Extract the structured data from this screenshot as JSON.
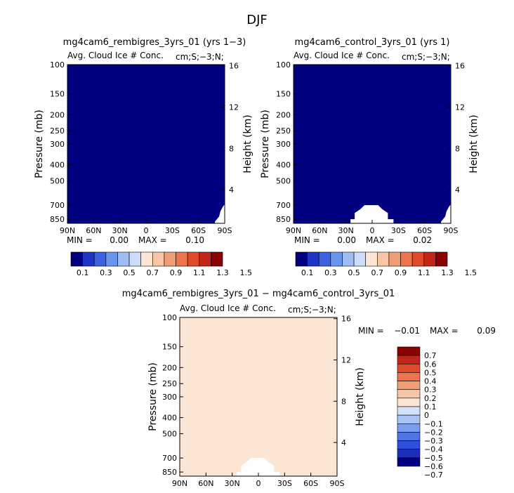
{
  "figure": {
    "title": "DJF"
  },
  "colors": {
    "field_levels": [
      "#000080",
      "#1f34c8",
      "#3b62e0",
      "#6a95ee",
      "#9fbdf3",
      "#cddcf7",
      "#fbe6d6",
      "#f7c6a7",
      "#f29e75",
      "#ed744e",
      "#e04b2e",
      "#c52518",
      "#8b0000"
    ],
    "diff_levels": [
      "#000080",
      "#1c2fb8",
      "#2f4fdc",
      "#4f74e6",
      "#7c9ced",
      "#a9c3f4",
      "#d2e2fa",
      "#fbe6d6",
      "#f7c6a7",
      "#f29e75",
      "#ed744e",
      "#e04b2e",
      "#c52518",
      "#8b0000"
    ],
    "line": "#000000"
  },
  "chart_data": [
    {
      "type": "heatmap",
      "panel": "a",
      "title": "mg4cam6_rembigres_3yrs_01 (yrs 1-3)",
      "subtitle": "Avg. Cloud Ice # Conc.",
      "corner_label": "cm;S;-3;N;",
      "ylabel": "Pressure (mb)",
      "ylabel_right": "Height (km)",
      "x_ticks": [
        "90N",
        "60N",
        "30N",
        "0",
        "30S",
        "60S",
        "90S"
      ],
      "y_ticks": [
        100,
        150,
        200,
        250,
        300,
        400,
        500,
        700,
        850
      ],
      "height_ticks": [
        16,
        12,
        8,
        4
      ],
      "stats": {
        "min_label": "MIN =",
        "min": "0.00",
        "max_label": "MAX =",
        "max": "0.10"
      },
      "fill_level": 0,
      "clear_regions": [
        "lowest levels near 90S"
      ],
      "colorbar": {
        "orientation": "horizontal",
        "labels": [
          "0.1",
          "0.3",
          "0.5",
          "0.7",
          "0.9",
          "1.1",
          "1.3",
          "1.5"
        ]
      }
    },
    {
      "type": "heatmap",
      "panel": "b",
      "title": "mg4cam6_control_3yrs_01 (yrs 1)",
      "subtitle": "Avg. Cloud Ice # Conc.",
      "corner_label": "cm;S;-3;N;",
      "ylabel": "Pressure (mb)",
      "ylabel_right": "Height (km)",
      "x_ticks": [
        "90N",
        "60N",
        "30N",
        "0",
        "30S",
        "60S",
        "90S"
      ],
      "y_ticks": [
        100,
        150,
        200,
        250,
        300,
        400,
        500,
        700,
        850
      ],
      "height_ticks": [
        16,
        12,
        8,
        4
      ],
      "stats": {
        "min_label": "MIN =",
        "min": "0.00",
        "max_label": "MAX =",
        "max": "0.02"
      },
      "fill_level": 0,
      "clear_regions": [
        "tropics below 700 mb",
        "lowest levels near 90S"
      ],
      "colorbar": {
        "orientation": "horizontal",
        "labels": [
          "0.1",
          "0.3",
          "0.5",
          "0.7",
          "0.9",
          "1.1",
          "1.3",
          "1.5"
        ]
      }
    },
    {
      "type": "heatmap",
      "panel": "diff",
      "title": "mg4cam6_rembigres_3yrs_01 - mg4cam6_control_3yrs_01",
      "subtitle": "Avg. Cloud Ice # Conc.",
      "corner_label": "cm;S;-3;N;",
      "ylabel": "Pressure (mb)",
      "ylabel_right": "Height (km)",
      "x_ticks": [
        "90N",
        "60N",
        "30N",
        "0",
        "30S",
        "60S",
        "90S"
      ],
      "y_ticks": [
        100,
        150,
        200,
        250,
        300,
        400,
        500,
        700,
        850
      ],
      "height_ticks": [
        16,
        12,
        8,
        4
      ],
      "stats": {
        "min_label": "MIN =",
        "min": "-0.01",
        "max_label": "MAX =",
        "max": "0.09"
      },
      "fill_level": 7,
      "clear_regions": [
        "tropics below 700 mb"
      ],
      "colorbar": {
        "orientation": "vertical",
        "labels": [
          "0.7",
          "0.6",
          "0.5",
          "0.4",
          "0.3",
          "0.2",
          "0.1",
          "0",
          "-0.1",
          "-0.2",
          "-0.3",
          "-0.4",
          "-0.5",
          "-0.6",
          "-0.7"
        ]
      }
    }
  ]
}
